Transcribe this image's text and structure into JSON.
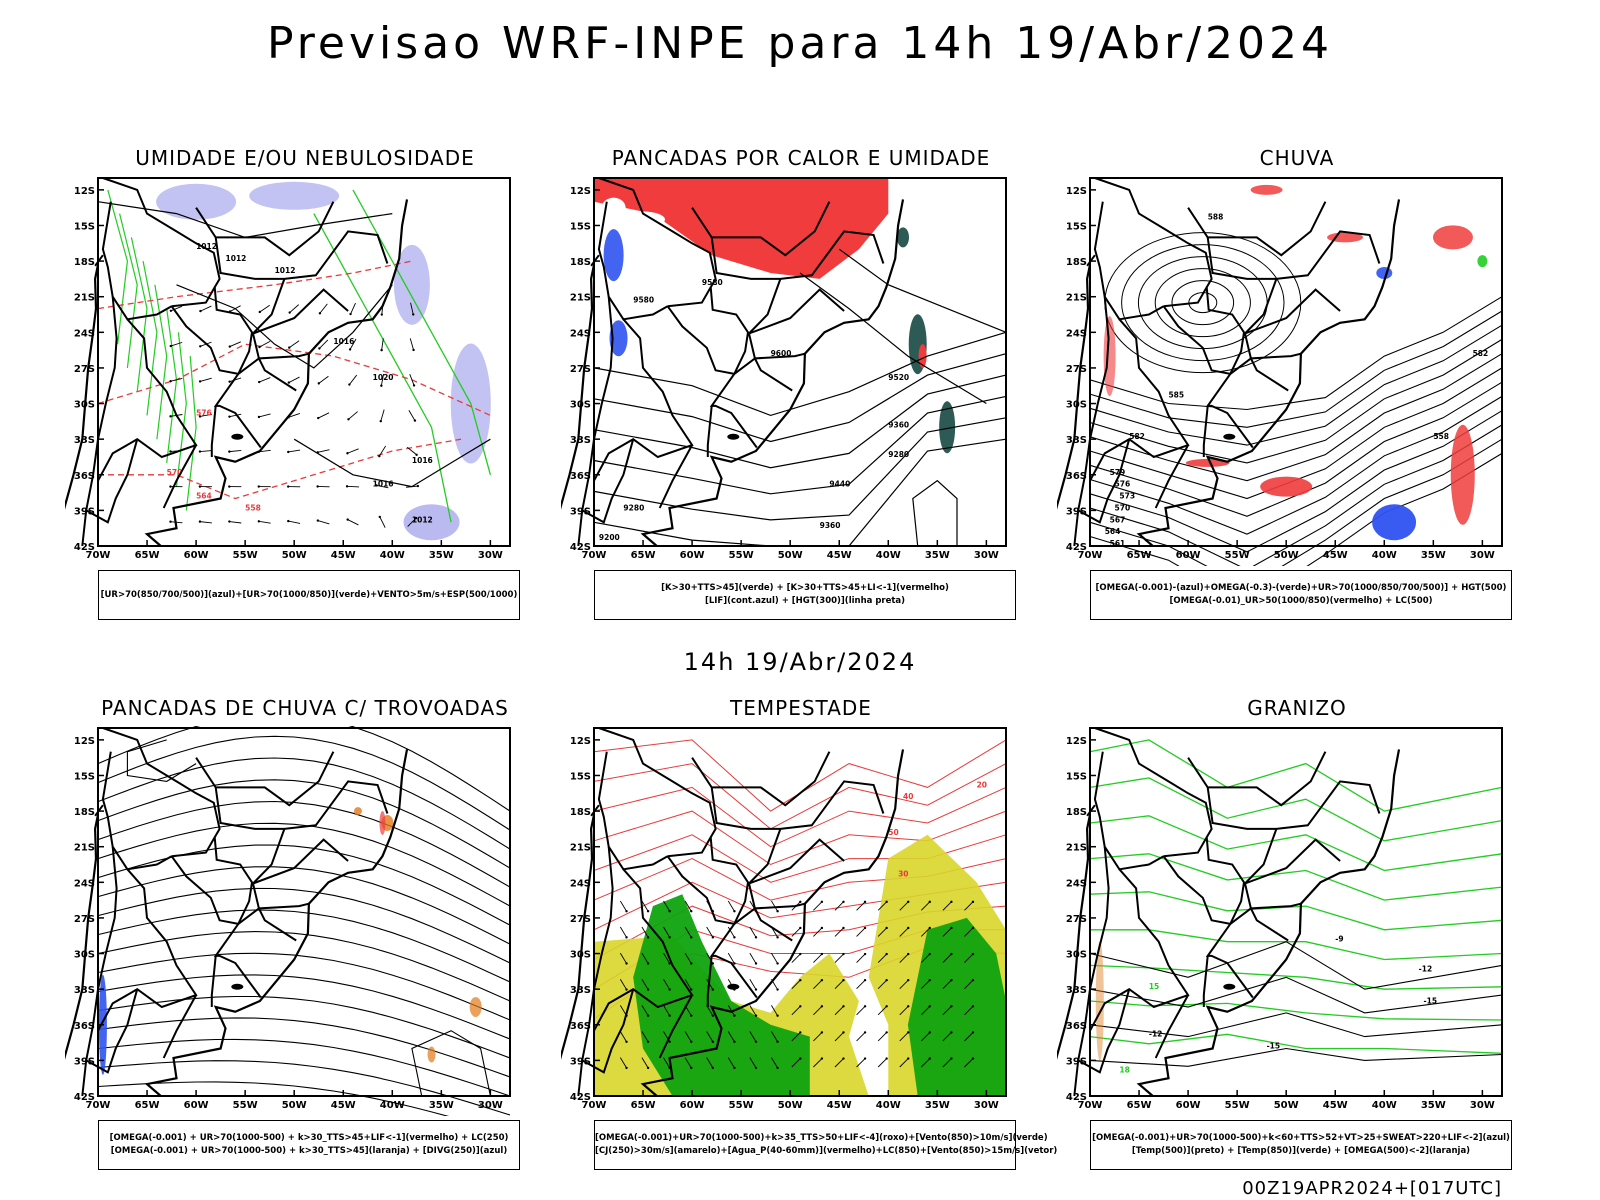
{
  "title": "Previsao WRF-INPE  para 14h 19/Abr/2024",
  "mid_title": "14h 19/Abr/2024",
  "footer": "00Z19APR2024+[017UTC]",
  "axes": {
    "lat_labels": [
      "12S",
      "15S",
      "18S",
      "21S",
      "24S",
      "27S",
      "30S",
      "33S",
      "36S",
      "39S",
      "42S"
    ],
    "lon_labels": [
      "70W",
      "65W",
      "60W",
      "55W",
      "50W",
      "45W",
      "40W",
      "35W",
      "30W"
    ]
  },
  "colors": {
    "blue_shade": "#b3b3f0",
    "green_contour": "#22cc22",
    "red_contour": "#e83a3a",
    "red_fill": "#f03c3c",
    "dark_teal": "#2e5a55",
    "blue_fill": "#2f52f0",
    "green_fill": "#0fa30f",
    "yellow_fill": "#d8d62a",
    "orange": "#e07a1a"
  },
  "panels": [
    {
      "title": "UMIDADE E/OU NEBULOSIDADE",
      "legend": [
        "[UR>70(850/700/500)](azul)+[UR>70(1000/850)](verde)+VENTO>5m/s+ESP(500/1000)"
      ],
      "labels": [
        "1012",
        "1012",
        "1012",
        "1016",
        "1020",
        "1016",
        "1016",
        "1012",
        "576",
        "570",
        "564",
        "558"
      ]
    },
    {
      "title": "PANCADAS POR CALOR E UMIDADE",
      "legend": [
        "[K>30+TTS>45](verde) + [K>30+TTS>45+LI<-1](vermelho)",
        "[LIF](cont.azul) + [HGT(300)](linha preta)"
      ],
      "labels": [
        "9580",
        "9580",
        "9600",
        "9520",
        "9360",
        "9280",
        "9440",
        "9360",
        "9280",
        "9200"
      ]
    },
    {
      "title": "CHUVA",
      "legend": [
        "[OMEGA(-0.001)-(azul)+OMEGA(-0.3)-(verde)+UR>70(1000/850/700/500)] + HGT(500)",
        "[OMEGA(-0.01)_UR>50(1000/850)(vermelho) + LC(500)"
      ],
      "labels": [
        "588",
        "585",
        "582",
        "579",
        "576",
        "573",
        "570",
        "567",
        "564",
        "561",
        "558",
        "582"
      ]
    },
    {
      "title": "PANCADAS DE CHUVA C/ TROVOADAS",
      "legend": [
        "[OMEGA(-0.001) + UR>70(1000-500) + k>30_TTS>45+LIF<-1](vermelho) + LC(250)",
        "[OMEGA(-0.001) + UR>70(1000-500) + k>30_TTS>45](laranja) + [DIVG(250)](azul)"
      ],
      "labels": []
    },
    {
      "title": "TEMPESTADE",
      "legend": [
        "[OMEGA(-0.001)+UR>70(1000-500)+k>35_TTS>50+LIF<-4](roxo)+[Vento(850)>10m/s](verde)",
        "[CJ(250)>30m/s](amarelo)+[Agua_P(40-60mm)](vermelho)+LC(850)+[Vento(850)>15m/s](vetor)"
      ],
      "labels": [
        "50",
        "40",
        "30",
        "20"
      ]
    },
    {
      "title": "GRANIZO",
      "legend": [
        "[OMEGA(-0.001)+UR>70(1000-500)+k<60+TTS>52+VT>25+SWEAT>220+LIF<-2](azul)",
        "[Temp(500)](preto) + [Temp(850)](verde) + [OMEGA(500)<-2](laranja)"
      ],
      "labels": [
        "-9",
        "-12",
        "-15",
        "-12",
        "-15",
        "15",
        "18"
      ]
    }
  ]
}
